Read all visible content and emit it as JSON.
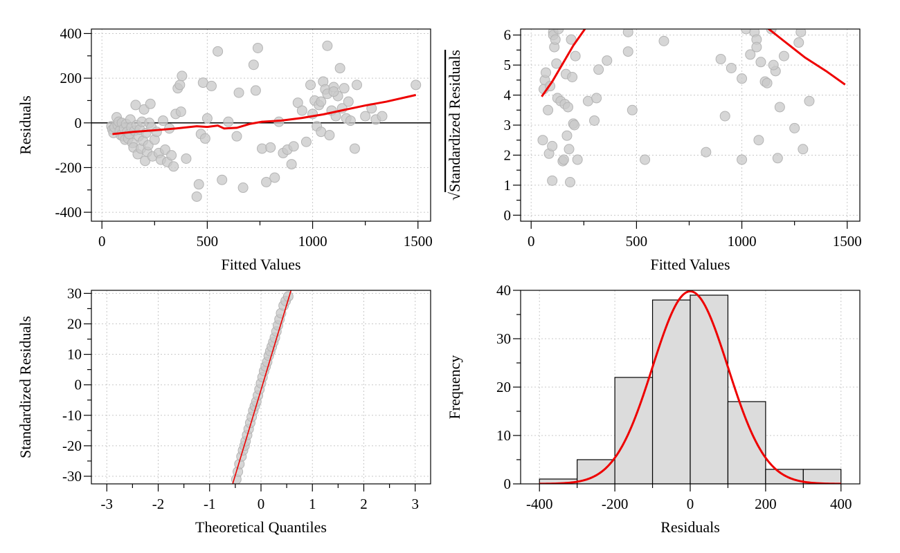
{
  "colors": {
    "points": "#c8c8c8",
    "fit_line": "#ee0000",
    "bars": "#dcdcdc"
  },
  "chart_data": [
    {
      "id": "residuals-vs-fitted",
      "type": "scatter",
      "xlabel": "Fitted Values",
      "ylabel": "Residuals",
      "xlim": [
        -50,
        1560
      ],
      "ylim": [
        -440,
        420
      ],
      "xticks": [
        0,
        500,
        1000,
        1500
      ],
      "xtick_labels": [
        "0",
        "500",
        "1000",
        "1500"
      ],
      "yticks": [
        -400,
        -200,
        0,
        200,
        400
      ],
      "ytick_labels": [
        "-400",
        "-200",
        "0",
        "200",
        "400"
      ],
      "grid": true,
      "reference_line_y": 0,
      "points": [
        [
          45,
          -15
        ],
        [
          50,
          -30
        ],
        [
          55,
          -45
        ],
        [
          60,
          -20
        ],
        [
          70,
          25
        ],
        [
          75,
          -10
        ],
        [
          80,
          5
        ],
        [
          85,
          -35
        ],
        [
          90,
          -55
        ],
        [
          95,
          0
        ],
        [
          100,
          -60
        ],
        [
          105,
          -25
        ],
        [
          110,
          -75
        ],
        [
          115,
          -5
        ],
        [
          120,
          -40
        ],
        [
          125,
          -70
        ],
        [
          130,
          -50
        ],
        [
          135,
          15
        ],
        [
          140,
          -20
        ],
        [
          145,
          -90
        ],
        [
          150,
          -110
        ],
        [
          155,
          -35
        ],
        [
          160,
          80
        ],
        [
          165,
          -10
        ],
        [
          170,
          -140
        ],
        [
          175,
          -60
        ],
        [
          180,
          -30
        ],
        [
          185,
          -115
        ],
        [
          190,
          5
        ],
        [
          195,
          -80
        ],
        [
          200,
          60
        ],
        [
          205,
          -170
        ],
        [
          210,
          -45
        ],
        [
          215,
          -130
        ],
        [
          220,
          -100
        ],
        [
          225,
          0
        ],
        [
          230,
          85
        ],
        [
          235,
          -20
        ],
        [
          240,
          -150
        ],
        [
          250,
          -75
        ],
        [
          260,
          -40
        ],
        [
          270,
          -135
        ],
        [
          280,
          -165
        ],
        [
          290,
          10
        ],
        [
          300,
          -120
        ],
        [
          310,
          -175
        ],
        [
          320,
          -25
        ],
        [
          330,
          -145
        ],
        [
          340,
          -195
        ],
        [
          350,
          40
        ],
        [
          360,
          155
        ],
        [
          370,
          170
        ],
        [
          375,
          50
        ],
        [
          380,
          210
        ],
        [
          400,
          -160
        ],
        [
          450,
          -330
        ],
        [
          460,
          -275
        ],
        [
          470,
          -50
        ],
        [
          480,
          180
        ],
        [
          490,
          -70
        ],
        [
          500,
          20
        ],
        [
          520,
          165
        ],
        [
          550,
          320
        ],
        [
          570,
          -255
        ],
        [
          600,
          5
        ],
        [
          640,
          -60
        ],
        [
          650,
          135
        ],
        [
          670,
          -290
        ],
        [
          720,
          260
        ],
        [
          730,
          145
        ],
        [
          740,
          335
        ],
        [
          760,
          -115
        ],
        [
          780,
          -265
        ],
        [
          800,
          -110
        ],
        [
          820,
          -245
        ],
        [
          840,
          5
        ],
        [
          860,
          -135
        ],
        [
          880,
          -120
        ],
        [
          900,
          -185
        ],
        [
          910,
          -105
        ],
        [
          930,
          90
        ],
        [
          950,
          55
        ],
        [
          970,
          -85
        ],
        [
          990,
          170
        ],
        [
          1000,
          40
        ],
        [
          1010,
          100
        ],
        [
          1020,
          -15
        ],
        [
          1030,
          80
        ],
        [
          1040,
          -40
        ],
        [
          1050,
          185
        ],
        [
          1060,
          150
        ],
        [
          1070,
          130
        ],
        [
          1080,
          -55
        ],
        [
          1090,
          55
        ],
        [
          1100,
          160
        ],
        [
          1110,
          30
        ],
        [
          1120,
          120
        ],
        [
          1130,
          245
        ],
        [
          1140,
          65
        ],
        [
          1150,
          155
        ],
        [
          1160,
          20
        ],
        [
          1170,
          95
        ],
        [
          1180,
          10
        ],
        [
          1200,
          -115
        ],
        [
          1210,
          170
        ],
        [
          1250,
          30
        ],
        [
          1280,
          65
        ],
        [
          1300,
          15
        ],
        [
          1330,
          30
        ],
        [
          1490,
          170
        ],
        [
          1070,
          345
        ],
        [
          1100,
          140
        ],
        [
          1040,
          95
        ]
      ],
      "smooth_line": [
        [
          50,
          -50
        ],
        [
          150,
          -40
        ],
        [
          250,
          -33
        ],
        [
          350,
          -25
        ],
        [
          450,
          -15
        ],
        [
          500,
          -18
        ],
        [
          550,
          -12
        ],
        [
          580,
          -25
        ],
        [
          640,
          -22
        ],
        [
          700,
          -5
        ],
        [
          760,
          5
        ],
        [
          850,
          10
        ],
        [
          950,
          22
        ],
        [
          1050,
          38
        ],
        [
          1150,
          58
        ],
        [
          1250,
          78
        ],
        [
          1350,
          95
        ],
        [
          1490,
          125
        ]
      ]
    },
    {
      "id": "scale-location",
      "type": "scatter",
      "xlabel": "Fitted Values",
      "ylabel": "Standardized Residuals",
      "ylabel_prefix": "√",
      "xlim": [
        -50,
        1560
      ],
      "ylim": [
        -0.2,
        6.2
      ],
      "xticks": [
        0,
        500,
        1000,
        1500
      ],
      "xtick_labels": [
        "0",
        "500",
        "1000",
        "1500"
      ],
      "yticks": [
        0,
        1,
        2,
        3,
        4,
        5,
        6
      ],
      "ytick_labels": [
        "0",
        "1",
        "2",
        "3",
        "4",
        "5",
        "6"
      ],
      "grid": true,
      "points": [
        [
          55,
          2.5
        ],
        [
          60,
          4.2
        ],
        [
          65,
          4.5
        ],
        [
          70,
          4.75
        ],
        [
          80,
          3.5
        ],
        [
          85,
          2.05
        ],
        [
          90,
          4.3
        ],
        [
          100,
          2.3
        ],
        [
          100,
          1.15
        ],
        [
          105,
          6.1
        ],
        [
          105,
          6.0
        ],
        [
          110,
          5.6
        ],
        [
          115,
          5.85
        ],
        [
          120,
          5.05
        ],
        [
          125,
          3.9
        ],
        [
          130,
          6.2
        ],
        [
          140,
          3.8
        ],
        [
          150,
          1.8
        ],
        [
          155,
          1.85
        ],
        [
          160,
          3.7
        ],
        [
          165,
          4.7
        ],
        [
          170,
          2.65
        ],
        [
          175,
          3.6
        ],
        [
          180,
          2.2
        ],
        [
          185,
          1.1
        ],
        [
          190,
          5.85
        ],
        [
          195,
          4.6
        ],
        [
          200,
          3.05
        ],
        [
          205,
          3.0
        ],
        [
          210,
          5.3
        ],
        [
          220,
          1.85
        ],
        [
          270,
          3.8
        ],
        [
          300,
          3.15
        ],
        [
          310,
          3.9
        ],
        [
          320,
          4.85
        ],
        [
          360,
          5.15
        ],
        [
          460,
          6.1
        ],
        [
          460,
          5.45
        ],
        [
          480,
          3.5
        ],
        [
          540,
          1.85
        ],
        [
          630,
          5.8
        ],
        [
          830,
          2.1
        ],
        [
          900,
          5.2
        ],
        [
          920,
          3.3
        ],
        [
          950,
          4.9
        ],
        [
          1000,
          4.55
        ],
        [
          1000,
          1.85
        ],
        [
          1020,
          6.2
        ],
        [
          1040,
          5.35
        ],
        [
          1060,
          6.1
        ],
        [
          1070,
          5.85
        ],
        [
          1070,
          5.6
        ],
        [
          1080,
          2.5
        ],
        [
          1090,
          5.1
        ],
        [
          1110,
          4.45
        ],
        [
          1120,
          4.4
        ],
        [
          1140,
          6.2
        ],
        [
          1160,
          4.8
        ],
        [
          1170,
          1.9
        ],
        [
          1180,
          3.6
        ],
        [
          1200,
          5.3
        ],
        [
          1250,
          2.9
        ],
        [
          1270,
          5.75
        ],
        [
          1280,
          6.1
        ],
        [
          1290,
          2.2
        ],
        [
          1320,
          3.8
        ],
        [
          1150,
          5.0
        ]
      ],
      "smooth_line": [
        [
          50,
          3.95
        ],
        [
          100,
          4.45
        ],
        [
          150,
          5.05
        ],
        [
          200,
          5.65
        ],
        [
          265,
          6.3
        ]
      ],
      "smooth_line_2": [
        [
          1110,
          6.3
        ],
        [
          1200,
          5.8
        ],
        [
          1300,
          5.25
        ],
        [
          1400,
          4.8
        ],
        [
          1490,
          4.35
        ]
      ]
    },
    {
      "id": "qq-plot",
      "type": "scatter",
      "xlabel": "Theoretical Quantiles",
      "ylabel": "Standardized Residuals",
      "xlim": [
        -3.3,
        3.3
      ],
      "ylim": [
        -32.5,
        31
      ],
      "xticks": [
        -3,
        -2,
        -1,
        0,
        1,
        2,
        3
      ],
      "xtick_labels": [
        "-3",
        "-2",
        "-1",
        "0",
        "1",
        "2",
        "3"
      ],
      "yticks": [
        -30,
        -20,
        -10,
        0,
        10,
        20,
        30
      ],
      "ytick_labels": [
        "-30",
        "-20",
        "-10",
        "0",
        "10",
        "20",
        "30"
      ],
      "grid": true,
      "reference_line": [
        [
          -0.56,
          -33
        ],
        [
          0.62,
          33
        ]
      ],
      "points": [
        [
          -0.48,
          -31
        ],
        [
          -0.45,
          -28.5
        ],
        [
          -0.42,
          -26
        ],
        [
          -0.38,
          -23.5
        ],
        [
          -0.35,
          -21.5
        ],
        [
          -0.32,
          -20
        ],
        [
          -0.3,
          -18.5
        ],
        [
          -0.27,
          -16.5
        ],
        [
          -0.24,
          -14.5
        ],
        [
          -0.21,
          -12.5
        ],
        [
          -0.18,
          -10.5
        ],
        [
          -0.15,
          -8.5
        ],
        [
          -0.12,
          -7
        ],
        [
          -0.09,
          -5.5
        ],
        [
          -0.06,
          -3.5
        ],
        [
          -0.03,
          -1.5
        ],
        [
          0,
          0.5
        ],
        [
          0.03,
          2.5
        ],
        [
          0.06,
          4.5
        ],
        [
          0.09,
          6
        ],
        [
          0.12,
          7.5
        ],
        [
          0.15,
          9.5
        ],
        [
          0.18,
          11
        ],
        [
          0.21,
          12.5
        ],
        [
          0.24,
          14
        ],
        [
          0.27,
          15.5
        ],
        [
          0.3,
          17.5
        ],
        [
          0.33,
          19.5
        ],
        [
          0.36,
          21.5
        ],
        [
          0.39,
          23.5
        ],
        [
          0.44,
          26
        ],
        [
          0.48,
          27.5
        ],
        [
          0.53,
          29
        ]
      ]
    },
    {
      "id": "residual-histogram",
      "type": "bar",
      "xlabel": "Residuals",
      "ylabel": "Frequency",
      "xlim": [
        -450,
        450
      ],
      "ylim": [
        0,
        40
      ],
      "xticks": [
        -400,
        -200,
        0,
        200,
        400
      ],
      "xtick_labels": [
        "-400",
        "-200",
        "0",
        "200",
        "400"
      ],
      "yticks": [
        0,
        10,
        20,
        30,
        40
      ],
      "ytick_labels": [
        "0",
        "10",
        "20",
        "30",
        "40"
      ],
      "grid": true,
      "bin_edges": [
        -400,
        -300,
        -200,
        -100,
        0,
        100,
        200,
        300,
        400
      ],
      "counts": [
        1,
        5,
        22,
        38,
        39,
        17,
        3,
        3
      ],
      "density_curve": {
        "mean": 0,
        "sd": 100,
        "peak": 39.8
      }
    }
  ]
}
